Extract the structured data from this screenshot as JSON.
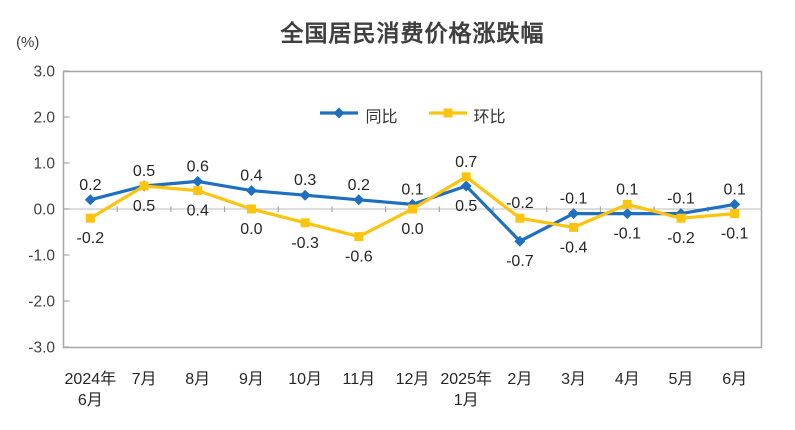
{
  "title": "全国居民消费价格涨跌幅",
  "colors": {
    "series_yoy": "#1f6fc0",
    "series_mom": "#fdc40f",
    "plot_border": "#a6a6a6",
    "zero_line": "#c9c9c9",
    "tick": "#a6a6a6",
    "axis_text": "#3f3f3f",
    "label_text": "#262626",
    "background": "#ffffff"
  },
  "chart_data": {
    "type": "line",
    "title": "全国居民消费价格涨跌幅",
    "ylabel": "(%)",
    "ylim": [
      -3.0,
      3.0
    ],
    "yticks": [
      3.0,
      2.0,
      1.0,
      0.0,
      -1.0,
      -2.0,
      -3.0
    ],
    "grid": "zero-line-only",
    "legend_position": "top-center-inside",
    "categories": [
      [
        "2024年",
        "6月"
      ],
      [
        "7月"
      ],
      [
        "8月"
      ],
      [
        "9月"
      ],
      [
        "10月"
      ],
      [
        "11月"
      ],
      [
        "12月"
      ],
      [
        "2025年",
        "1月"
      ],
      [
        "2月"
      ],
      [
        "3月"
      ],
      [
        "4月"
      ],
      [
        "5月"
      ],
      [
        "6月"
      ]
    ],
    "series": [
      {
        "name": "同比",
        "marker": "diamond",
        "color": "#1f6fc0",
        "values": [
          0.2,
          0.5,
          0.6,
          0.4,
          0.3,
          0.2,
          0.1,
          0.5,
          -0.7,
          -0.1,
          -0.1,
          -0.1,
          0.1
        ]
      },
      {
        "name": "环比",
        "marker": "square",
        "color": "#fdc40f",
        "values": [
          -0.2,
          0.5,
          0.4,
          0.0,
          -0.3,
          -0.6,
          0.0,
          0.7,
          -0.2,
          -0.4,
          0.1,
          -0.2,
          -0.1
        ]
      }
    ]
  }
}
